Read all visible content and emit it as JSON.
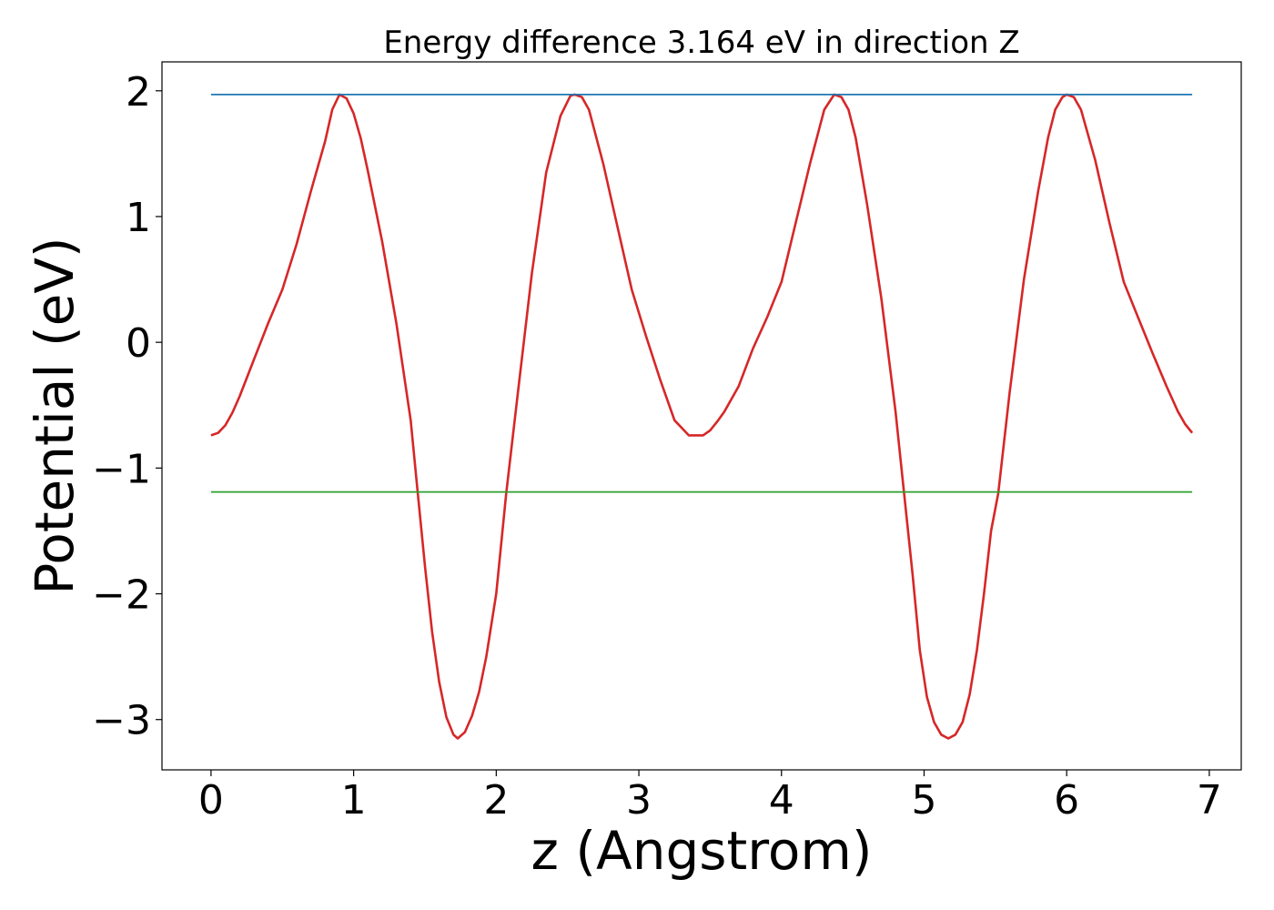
{
  "chart_data": {
    "type": "line",
    "title": "Energy difference 3.164 eV in direction Z",
    "xlabel": "z (Angstrom)",
    "ylabel": "Potential (eV)",
    "xlim": [
      -0.344,
      7.224
    ],
    "ylim": [
      -3.4,
      2.23
    ],
    "grid": false,
    "x_ticks": [
      "0",
      "1",
      "2",
      "3",
      "4",
      "5",
      "6",
      "7"
    ],
    "y_ticks": [
      "−3",
      "−2",
      "−1",
      "0",
      "1",
      "2"
    ],
    "series": [
      {
        "color": "#d62728",
        "points": [
          [
            0.0,
            -0.74
          ],
          [
            0.05,
            -0.72
          ],
          [
            0.1,
            -0.66
          ],
          [
            0.15,
            -0.56
          ],
          [
            0.2,
            -0.43
          ],
          [
            0.3,
            -0.14
          ],
          [
            0.4,
            0.15
          ],
          [
            0.5,
            0.42
          ],
          [
            0.6,
            0.78
          ],
          [
            0.7,
            1.2
          ],
          [
            0.8,
            1.6
          ],
          [
            0.85,
            1.85
          ],
          [
            0.9,
            1.97
          ],
          [
            0.95,
            1.94
          ],
          [
            1.0,
            1.82
          ],
          [
            1.05,
            1.62
          ],
          [
            1.1,
            1.36
          ],
          [
            1.2,
            0.8
          ],
          [
            1.3,
            0.15
          ],
          [
            1.4,
            -0.62
          ],
          [
            1.45,
            -1.2
          ],
          [
            1.5,
            -1.78
          ],
          [
            1.55,
            -2.3
          ],
          [
            1.6,
            -2.7
          ],
          [
            1.65,
            -2.98
          ],
          [
            1.7,
            -3.12
          ],
          [
            1.73,
            -3.15
          ],
          [
            1.78,
            -3.1
          ],
          [
            1.83,
            -2.97
          ],
          [
            1.88,
            -2.78
          ],
          [
            1.93,
            -2.5
          ],
          [
            2.0,
            -2.0
          ],
          [
            2.07,
            -1.2
          ],
          [
            2.15,
            -0.42
          ],
          [
            2.25,
            0.55
          ],
          [
            2.35,
            1.35
          ],
          [
            2.45,
            1.8
          ],
          [
            2.52,
            1.96
          ],
          [
            2.55,
            1.97
          ],
          [
            2.6,
            1.95
          ],
          [
            2.65,
            1.85
          ],
          [
            2.75,
            1.42
          ],
          [
            2.85,
            0.92
          ],
          [
            2.95,
            0.42
          ],
          [
            3.05,
            0.05
          ],
          [
            3.15,
            -0.3
          ],
          [
            3.25,
            -0.62
          ],
          [
            3.35,
            -0.74
          ],
          [
            3.45,
            -0.74
          ],
          [
            3.5,
            -0.7
          ],
          [
            3.55,
            -0.63
          ],
          [
            3.6,
            -0.55
          ],
          [
            3.7,
            -0.35
          ],
          [
            3.8,
            -0.05
          ],
          [
            3.9,
            0.2
          ],
          [
            4.0,
            0.48
          ],
          [
            4.1,
            0.95
          ],
          [
            4.2,
            1.42
          ],
          [
            4.3,
            1.85
          ],
          [
            4.37,
            1.97
          ],
          [
            4.42,
            1.95
          ],
          [
            4.47,
            1.85
          ],
          [
            4.52,
            1.63
          ],
          [
            4.6,
            1.1
          ],
          [
            4.7,
            0.35
          ],
          [
            4.8,
            -0.55
          ],
          [
            4.86,
            -1.2
          ],
          [
            4.92,
            -1.85
          ],
          [
            4.97,
            -2.45
          ],
          [
            5.02,
            -2.82
          ],
          [
            5.07,
            -3.02
          ],
          [
            5.12,
            -3.12
          ],
          [
            5.17,
            -3.15
          ],
          [
            5.22,
            -3.12
          ],
          [
            5.27,
            -3.02
          ],
          [
            5.32,
            -2.8
          ],
          [
            5.37,
            -2.45
          ],
          [
            5.42,
            -2.0
          ],
          [
            5.47,
            -1.5
          ],
          [
            5.52,
            -1.2
          ],
          [
            5.6,
            -0.4
          ],
          [
            5.7,
            0.5
          ],
          [
            5.8,
            1.2
          ],
          [
            5.87,
            1.63
          ],
          [
            5.92,
            1.85
          ],
          [
            5.97,
            1.95
          ],
          [
            6.0,
            1.97
          ],
          [
            6.05,
            1.95
          ],
          [
            6.1,
            1.85
          ],
          [
            6.2,
            1.45
          ],
          [
            6.3,
            0.95
          ],
          [
            6.4,
            0.48
          ],
          [
            6.5,
            0.2
          ],
          [
            6.6,
            -0.08
          ],
          [
            6.7,
            -0.35
          ],
          [
            6.78,
            -0.55
          ],
          [
            6.83,
            -0.65
          ],
          [
            6.88,
            -0.72
          ]
        ]
      },
      {
        "color": "#1f77b4",
        "points": [
          [
            0.0,
            1.97
          ],
          [
            6.88,
            1.97
          ]
        ]
      },
      {
        "color": "#2ca02c",
        "points": [
          [
            0.0,
            -1.19
          ],
          [
            6.88,
            -1.19
          ]
        ]
      }
    ]
  }
}
